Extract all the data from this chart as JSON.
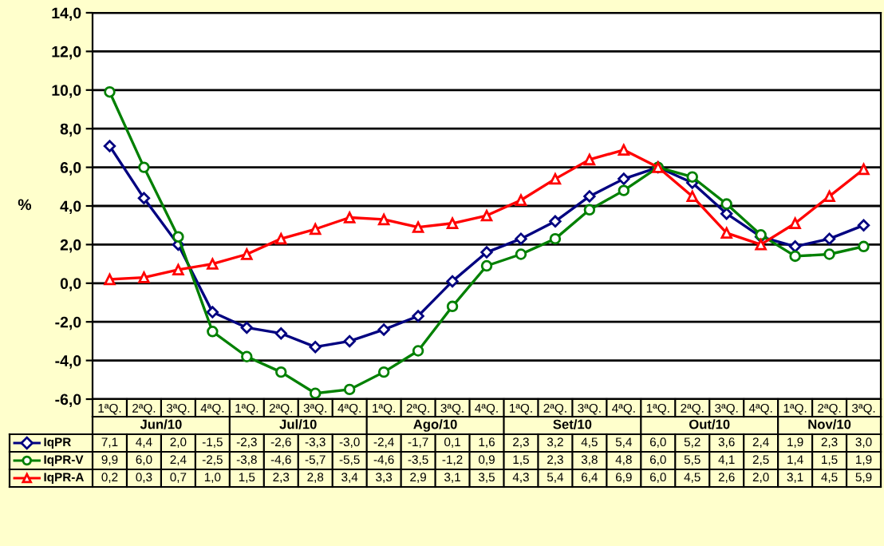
{
  "chart_data": {
    "type": "line",
    "categories": [
      "1ªQ.",
      "2ªQ.",
      "3ªQ.",
      "4ªQ.",
      "1ªQ.",
      "2ªQ.",
      "3ªQ.",
      "4ªQ.",
      "1ªQ.",
      "2ªQ.",
      "3ªQ.",
      "4ªQ.",
      "1ªQ.",
      "2ªQ.",
      "3ªQ.",
      "4ªQ.",
      "1ªQ.",
      "2ªQ.",
      "3ªQ.",
      "4ªQ.",
      "1ªQ.",
      "2ªQ.",
      "3ªQ."
    ],
    "series": [
      {
        "name": "IqPR",
        "color": "#000080",
        "marker": "diamond",
        "values": [
          7.1,
          4.4,
          2.0,
          -1.5,
          -2.3,
          -2.6,
          -3.3,
          -3.0,
          -2.4,
          -1.7,
          0.1,
          1.6,
          2.3,
          3.2,
          4.5,
          5.4,
          6.0,
          5.2,
          3.6,
          2.4,
          1.9,
          2.3,
          3.0
        ],
        "value_labels": [
          "7,1",
          "4,4",
          "2,0",
          "-1,5",
          "-2,3",
          "-2,6",
          "-3,3",
          "-3,0",
          "-2,4",
          "-1,7",
          "0,1",
          "1,6",
          "2,3",
          "3,2",
          "4,5",
          "5,4",
          "6,0",
          "5,2",
          "3,6",
          "2,4",
          "1,9",
          "2,3",
          "3,0"
        ]
      },
      {
        "name": "IqPR-V",
        "color": "#008000",
        "marker": "circle",
        "values": [
          9.9,
          6.0,
          2.4,
          -2.5,
          -3.8,
          -4.6,
          -5.7,
          -5.5,
          -4.6,
          -3.5,
          -1.2,
          0.9,
          1.5,
          2.3,
          3.8,
          4.8,
          6.0,
          5.5,
          4.1,
          2.5,
          1.4,
          1.5,
          1.9
        ],
        "value_labels": [
          "9,9",
          "6,0",
          "2,4",
          "-2,5",
          "-3,8",
          "-4,6",
          "-5,7",
          "-5,5",
          "-4,6",
          "-3,5",
          "-1,2",
          "0,9",
          "1,5",
          "2,3",
          "3,8",
          "4,8",
          "6,0",
          "5,5",
          "4,1",
          "2,5",
          "1,4",
          "1,5",
          "1,9"
        ]
      },
      {
        "name": "IqPR-A",
        "color": "#ff0000",
        "marker": "triangle",
        "values": [
          0.2,
          0.3,
          0.7,
          1.0,
          1.5,
          2.3,
          2.8,
          3.4,
          3.3,
          2.9,
          3.1,
          3.5,
          4.3,
          5.4,
          6.4,
          6.9,
          6.0,
          4.5,
          2.6,
          2.0,
          3.1,
          4.5,
          5.9
        ],
        "value_labels": [
          "0,2",
          "0,3",
          "0,7",
          "1,0",
          "1,5",
          "2,3",
          "2,8",
          "3,4",
          "3,3",
          "2,9",
          "3,1",
          "3,5",
          "4,3",
          "5,4",
          "6,4",
          "6,9",
          "6,0",
          "4,5",
          "2,6",
          "2,0",
          "3,1",
          "4,5",
          "5,9"
        ]
      }
    ],
    "annotations": [
      "Jun/10",
      "Jul/10",
      "Ago/10",
      "Set/10",
      "Out/10",
      "Nov/10"
    ],
    "ylabel": "%",
    "ylim": [
      -6,
      14
    ],
    "yticks": [
      {
        "value": -6,
        "label": "-6,0"
      },
      {
        "value": -4,
        "label": "-4,0"
      },
      {
        "value": -2,
        "label": "-2,0"
      },
      {
        "value": 0,
        "label": "0,0"
      },
      {
        "value": 2,
        "label": "2,0"
      },
      {
        "value": 4,
        "label": "4,0"
      },
      {
        "value": 6,
        "label": "6,0"
      },
      {
        "value": 8,
        "label": "8,0"
      },
      {
        "value": 10,
        "label": "10,0"
      },
      {
        "value": 12,
        "label": "12,0"
      },
      {
        "value": 14,
        "label": "14,0"
      }
    ],
    "grid": "y",
    "legend": "bottom left",
    "line_style": "solid"
  }
}
